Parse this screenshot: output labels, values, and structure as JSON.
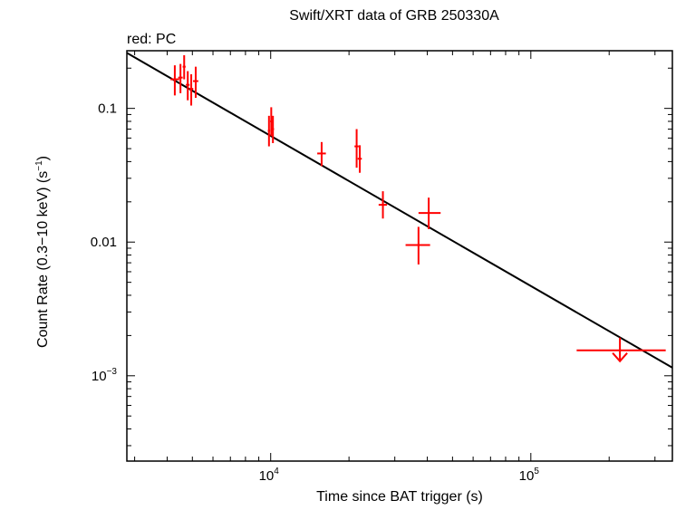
{
  "chart_data": {
    "type": "scatter",
    "title": "Swift/XRT data of GRB 250330A",
    "subtitle": "red: PC",
    "xlabel": "Time since BAT trigger (s)",
    "ylabel_parts": [
      "Count Rate (0.3−10 keV) (s",
      "−1",
      ")"
    ],
    "xscale": "log",
    "yscale": "log",
    "xlim": [
      2800,
      350000
    ],
    "ylim": [
      0.00023,
      0.27
    ],
    "x_tick_labels": [
      {
        "value": 10000,
        "base": "10",
        "exp": "4"
      },
      {
        "value": 100000,
        "base": "10",
        "exp": "5"
      }
    ],
    "y_tick_labels": [
      {
        "value": 0.1,
        "text": "0.1"
      },
      {
        "value": 0.01,
        "text": "0.01"
      },
      {
        "value": 0.001,
        "base": "10",
        "exp": "−3"
      }
    ],
    "series": [
      {
        "name": "PC",
        "color": "#ff0000",
        "points": [
          {
            "x": 4280,
            "y": 0.165,
            "xerr": [
              160,
              170
            ],
            "yerr": [
              0.04,
              0.045
            ]
          },
          {
            "x": 4500,
            "y": 0.17,
            "xerr": [
              90,
              90
            ],
            "yerr": [
              0.04,
              0.045
            ]
          },
          {
            "x": 4650,
            "y": 0.205,
            "xerr": [
              60,
              60
            ],
            "yerr": [
              0.04,
              0.045
            ]
          },
          {
            "x": 4800,
            "y": 0.15,
            "xerr": [
              80,
              80
            ],
            "yerr": [
              0.035,
              0.04
            ]
          },
          {
            "x": 4950,
            "y": 0.14,
            "xerr": [
              90,
              90
            ],
            "yerr": [
              0.035,
              0.04
            ]
          },
          {
            "x": 5150,
            "y": 0.16,
            "xerr": [
              120,
              120
            ],
            "yerr": [
              0.04,
              0.045
            ]
          },
          {
            "x": 9850,
            "y": 0.068,
            "xerr": [
              100,
              100
            ],
            "yerr": [
              0.016,
              0.02
            ]
          },
          {
            "x": 10050,
            "y": 0.08,
            "xerr": [
              100,
              100
            ],
            "yerr": [
              0.018,
              0.022
            ]
          },
          {
            "x": 10200,
            "y": 0.07,
            "xerr": [
              100,
              100
            ],
            "yerr": [
              0.015,
              0.018
            ]
          },
          {
            "x": 15700,
            "y": 0.046,
            "xerr": [
              600,
              600
            ],
            "yerr": [
              0.009,
              0.01
            ]
          },
          {
            "x": 21400,
            "y": 0.052,
            "xerr": [
              400,
              400
            ],
            "yerr": [
              0.016,
              0.018
            ]
          },
          {
            "x": 22000,
            "y": 0.042,
            "xerr": [
              400,
              400
            ],
            "yerr": [
              0.009,
              0.011
            ]
          },
          {
            "x": 27000,
            "y": 0.019,
            "xerr": [
              1000,
              1000
            ],
            "yerr": [
              0.004,
              0.005
            ]
          },
          {
            "x": 37000,
            "y": 0.0095,
            "xerr": [
              4000,
              4000
            ],
            "yerr": [
              0.0027,
              0.0035
            ]
          },
          {
            "x": 40500,
            "y": 0.0165,
            "xerr": [
              3500,
              4500
            ],
            "yerr": [
              0.004,
              0.005
            ]
          }
        ],
        "upper_limits": [
          {
            "x": 220000,
            "y": 0.00155,
            "xerr": [
              70000,
              110000
            ]
          }
        ]
      }
    ],
    "fit_line": {
      "name": "power-law fit",
      "color": "#000000",
      "points": [
        [
          2800,
          0.26
        ],
        [
          350000,
          0.00115
        ]
      ]
    }
  }
}
